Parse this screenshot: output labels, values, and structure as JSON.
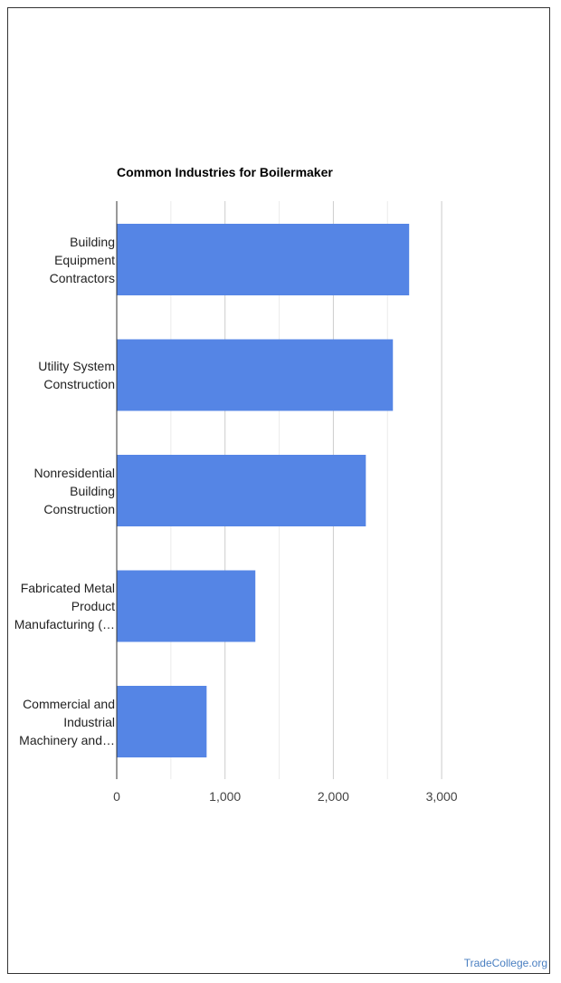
{
  "chart_data": {
    "type": "bar",
    "orientation": "horizontal",
    "title": "Common Industries for Boilermaker",
    "categories": [
      [
        "Building",
        "Equipment",
        "Contractors"
      ],
      [
        "Utility System",
        "Construction"
      ],
      [
        "Nonresidential",
        "Building",
        "Construction"
      ],
      [
        "Fabricated Metal",
        "Product",
        "Manufacturing (…"
      ],
      [
        "Commercial and",
        "Industrial",
        "Machinery and…"
      ]
    ],
    "values": [
      2700,
      2550,
      2300,
      1280,
      830
    ],
    "xlim": [
      0,
      3300
    ],
    "xticks": [
      0,
      1000,
      2000,
      3000
    ],
    "xtick_labels": [
      "0",
      "1,000",
      "2,000",
      "3,000"
    ],
    "bar_color": "#5585e5",
    "grid": true
  },
  "credit": "TradeCollege.org"
}
